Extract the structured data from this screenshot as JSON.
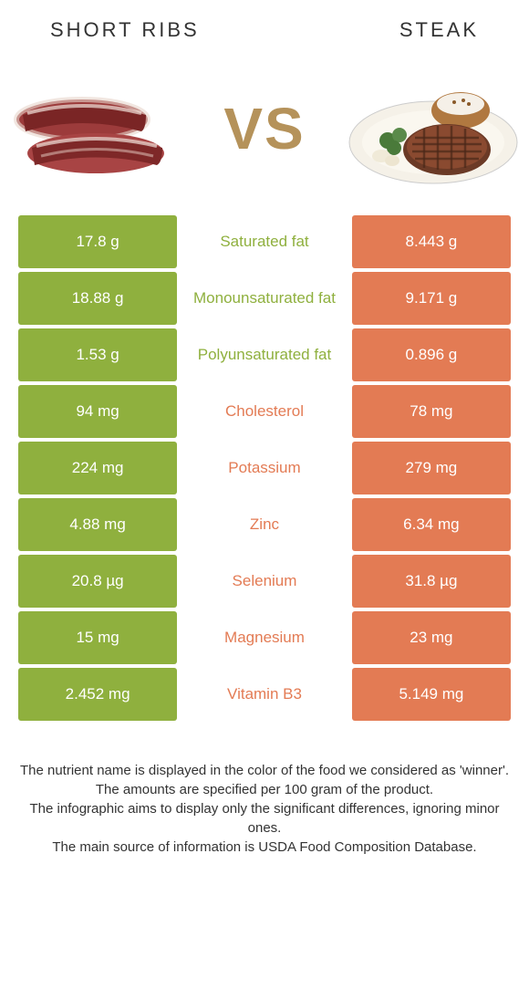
{
  "header": {
    "left_title": "Short ribs",
    "right_title": "Steak"
  },
  "vs_label": "VS",
  "colors": {
    "left_bg": "#8fb03e",
    "right_bg": "#e37b54",
    "left_text": "#8fb03e",
    "right_text": "#e37b54",
    "vs_color": "#b5925a"
  },
  "rows": [
    {
      "left": "17.8 g",
      "label": "Saturated fat",
      "right": "8.443 g",
      "winner": "left"
    },
    {
      "left": "18.88 g",
      "label": "Monounsaturated fat",
      "right": "9.171 g",
      "winner": "left"
    },
    {
      "left": "1.53 g",
      "label": "Polyunsaturated fat",
      "right": "0.896 g",
      "winner": "left"
    },
    {
      "left": "94 mg",
      "label": "Cholesterol",
      "right": "78 mg",
      "winner": "right"
    },
    {
      "left": "224 mg",
      "label": "Potassium",
      "right": "279 mg",
      "winner": "right"
    },
    {
      "left": "4.88 mg",
      "label": "Zinc",
      "right": "6.34 mg",
      "winner": "right"
    },
    {
      "left": "20.8 µg",
      "label": "Selenium",
      "right": "31.8 µg",
      "winner": "right"
    },
    {
      "left": "15 mg",
      "label": "Magnesium",
      "right": "23 mg",
      "winner": "right"
    },
    {
      "left": "2.452 mg",
      "label": "Vitamin B3",
      "right": "5.149 mg",
      "winner": "right"
    }
  ],
  "footer": {
    "line1": "The nutrient name is displayed in the color of the food we considered as 'winner'.",
    "line2": "The amounts are specified per 100 gram of the product.",
    "line3": "The infographic aims to display only the significant differences, ignoring minor ones.",
    "line4": "The main source of information is USDA Food Composition Database."
  }
}
